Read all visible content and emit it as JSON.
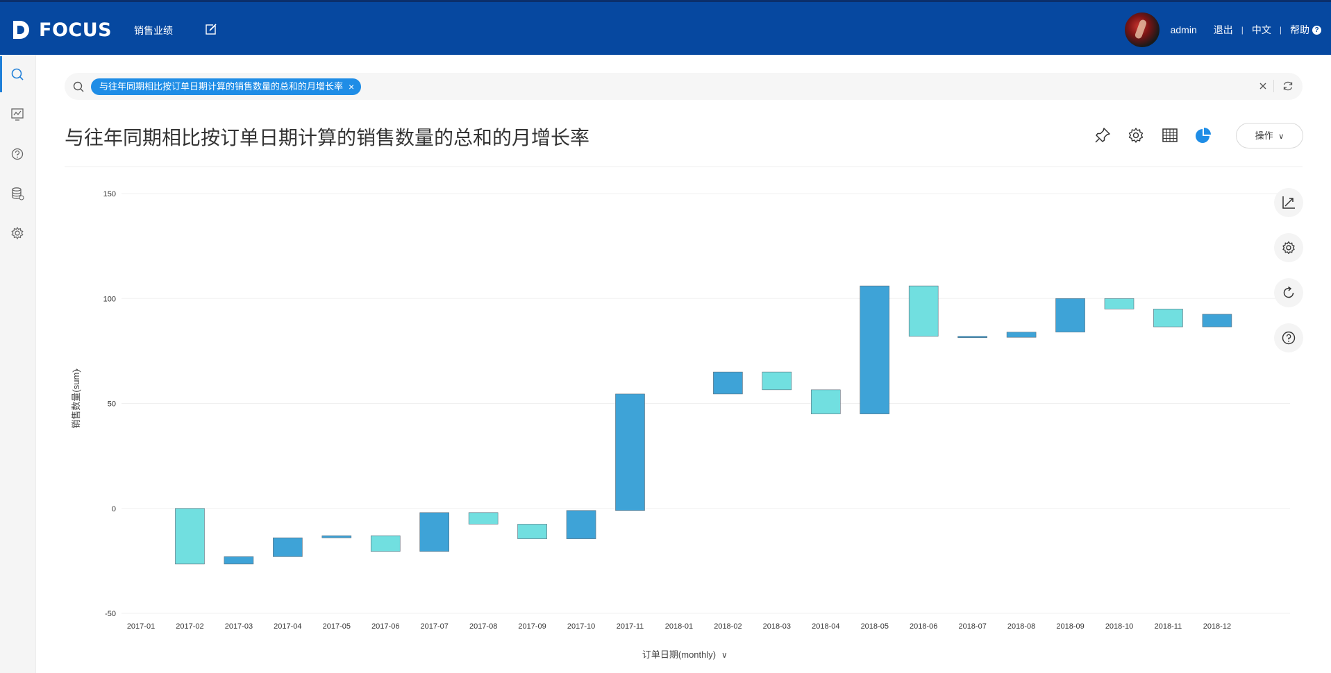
{
  "header": {
    "logo_text": "FOCUS",
    "nav_item": "销售业绩",
    "username": "admin",
    "logout": "退出",
    "language": "中文",
    "help": "帮助"
  },
  "search": {
    "tag_text": "与往年同期相比按订单日期计算的销售数量的总和的月增长率"
  },
  "main": {
    "title": "与往年同期相比按订单日期计算的销售数量的总和的月增长率",
    "ops_label": "操作"
  },
  "colors": {
    "header_bg": "#0648a0",
    "accent": "#1f8de6",
    "bar_dark": "#3ea3d7",
    "bar_light": "#71dfe0"
  },
  "icons": {
    "sidebar": [
      "search-icon",
      "board-icon",
      "help-icon",
      "database-icon",
      "settings-icon"
    ],
    "toolbar": [
      "pin-icon",
      "gear-icon",
      "table-icon",
      "pie-icon"
    ],
    "float": [
      "axis-icon",
      "gear-icon",
      "refresh-icon",
      "help-icon"
    ]
  },
  "chart_data": {
    "type": "waterfall",
    "title": "",
    "xlabel": "订单日期(monthly)",
    "ylabel": "销售数量(sum)",
    "ylim": [
      -50,
      150
    ],
    "yticks": [
      "150",
      "100",
      "50",
      "0",
      "-50"
    ],
    "ytick_values": [
      150,
      100,
      50,
      0,
      -50
    ],
    "categories": [
      "2017-01",
      "2017-02",
      "2017-03",
      "2017-04",
      "2017-05",
      "2017-06",
      "2017-07",
      "2017-08",
      "2017-09",
      "2017-10",
      "2017-11",
      "2018-01",
      "2018-02",
      "2018-03",
      "2018-04",
      "2018-05",
      "2018-06",
      "2018-07",
      "2018-08",
      "2018-09",
      "2018-10",
      "2018-11",
      "2018-12"
    ],
    "bars": [
      null,
      {
        "from": 0,
        "to": -26.5,
        "tone": "light"
      },
      {
        "from": -23,
        "to": -26.5,
        "tone": "dark"
      },
      {
        "from": -14,
        "to": -23,
        "tone": "dark"
      },
      {
        "from": -13,
        "to": -14,
        "tone": "dark"
      },
      {
        "from": -13,
        "to": -20.5,
        "tone": "light"
      },
      {
        "from": -2,
        "to": -20.5,
        "tone": "dark"
      },
      {
        "from": -2,
        "to": -7.5,
        "tone": "light"
      },
      {
        "from": -7.5,
        "to": -14.5,
        "tone": "light"
      },
      {
        "from": -1,
        "to": -14.5,
        "tone": "dark"
      },
      {
        "from": 54.5,
        "to": -1,
        "tone": "dark"
      },
      null,
      {
        "from": 65,
        "to": 54.5,
        "tone": "dark"
      },
      {
        "from": 65,
        "to": 56.5,
        "tone": "light"
      },
      {
        "from": 56.5,
        "to": 45,
        "tone": "light"
      },
      {
        "from": 106,
        "to": 45,
        "tone": "dark"
      },
      {
        "from": 106,
        "to": 82,
        "tone": "light"
      },
      {
        "from": 82,
        "to": 81.5,
        "tone": "dark"
      },
      {
        "from": 84,
        "to": 81.5,
        "tone": "dark"
      },
      {
        "from": 100,
        "to": 84,
        "tone": "dark"
      },
      {
        "from": 100,
        "to": 95,
        "tone": "light"
      },
      {
        "from": 95,
        "to": 86.5,
        "tone": "light"
      },
      {
        "from": 92.5,
        "to": 86.5,
        "tone": "dark"
      }
    ]
  }
}
